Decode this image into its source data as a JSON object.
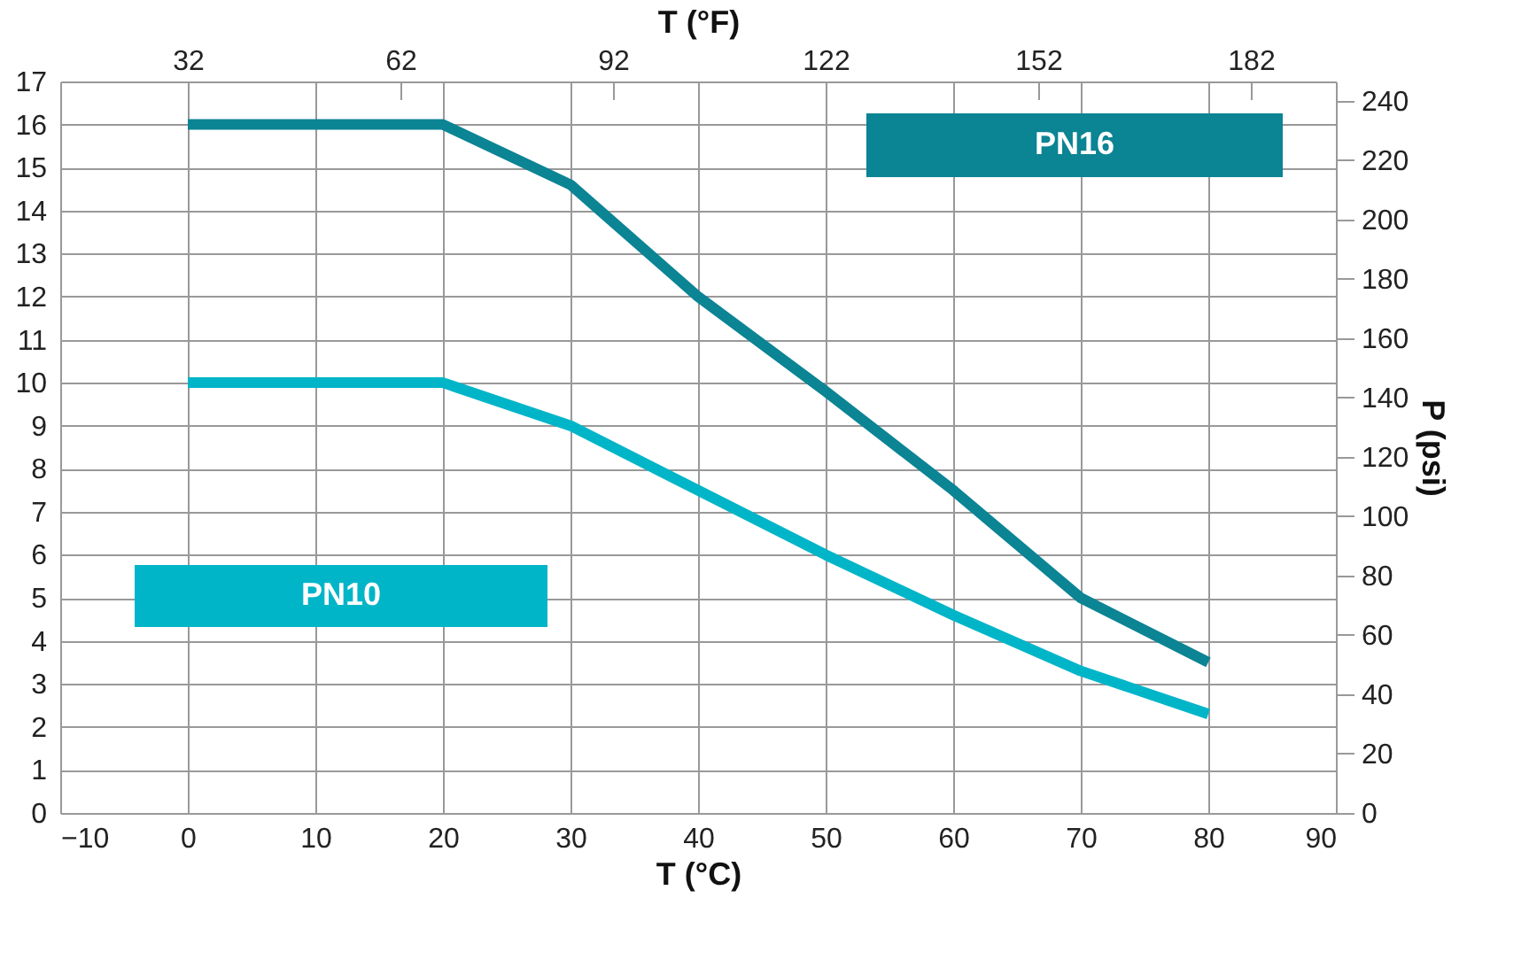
{
  "chart_data": {
    "type": "line",
    "xlabel": "T (°C)",
    "x2label": "T (°F)",
    "y2label": "P (psi)",
    "x": [
      0,
      20,
      30,
      40,
      50,
      60,
      70,
      80
    ],
    "series": [
      {
        "name": "PN16",
        "color": "#0b8494",
        "values": [
          16,
          16,
          14.6,
          12,
          9.8,
          7.5,
          5,
          3.5
        ]
      },
      {
        "name": "PN10",
        "color": "#00b5c8",
        "values": [
          10,
          10,
          9,
          7.5,
          6,
          4.6,
          3.3,
          2.3
        ]
      }
    ],
    "xlim": [
      -10,
      90
    ],
    "xticks": [
      -10,
      0,
      10,
      20,
      30,
      40,
      50,
      60,
      70,
      80,
      90
    ],
    "ylim": [
      0,
      17
    ],
    "yticks": [
      0,
      1,
      2,
      3,
      4,
      5,
      6,
      7,
      8,
      9,
      10,
      11,
      12,
      13,
      14,
      15,
      16,
      17
    ],
    "x2lim": [
      14,
      194
    ],
    "x2ticks": [
      32,
      62,
      92,
      122,
      152,
      182
    ],
    "y2lim": [
      0,
      246.5
    ],
    "y2ticks": [
      0,
      20,
      40,
      60,
      80,
      100,
      120,
      140,
      160,
      180,
      200,
      220,
      240
    ],
    "grid": true,
    "legend": false,
    "marker": "none",
    "line_style": "solid"
  }
}
